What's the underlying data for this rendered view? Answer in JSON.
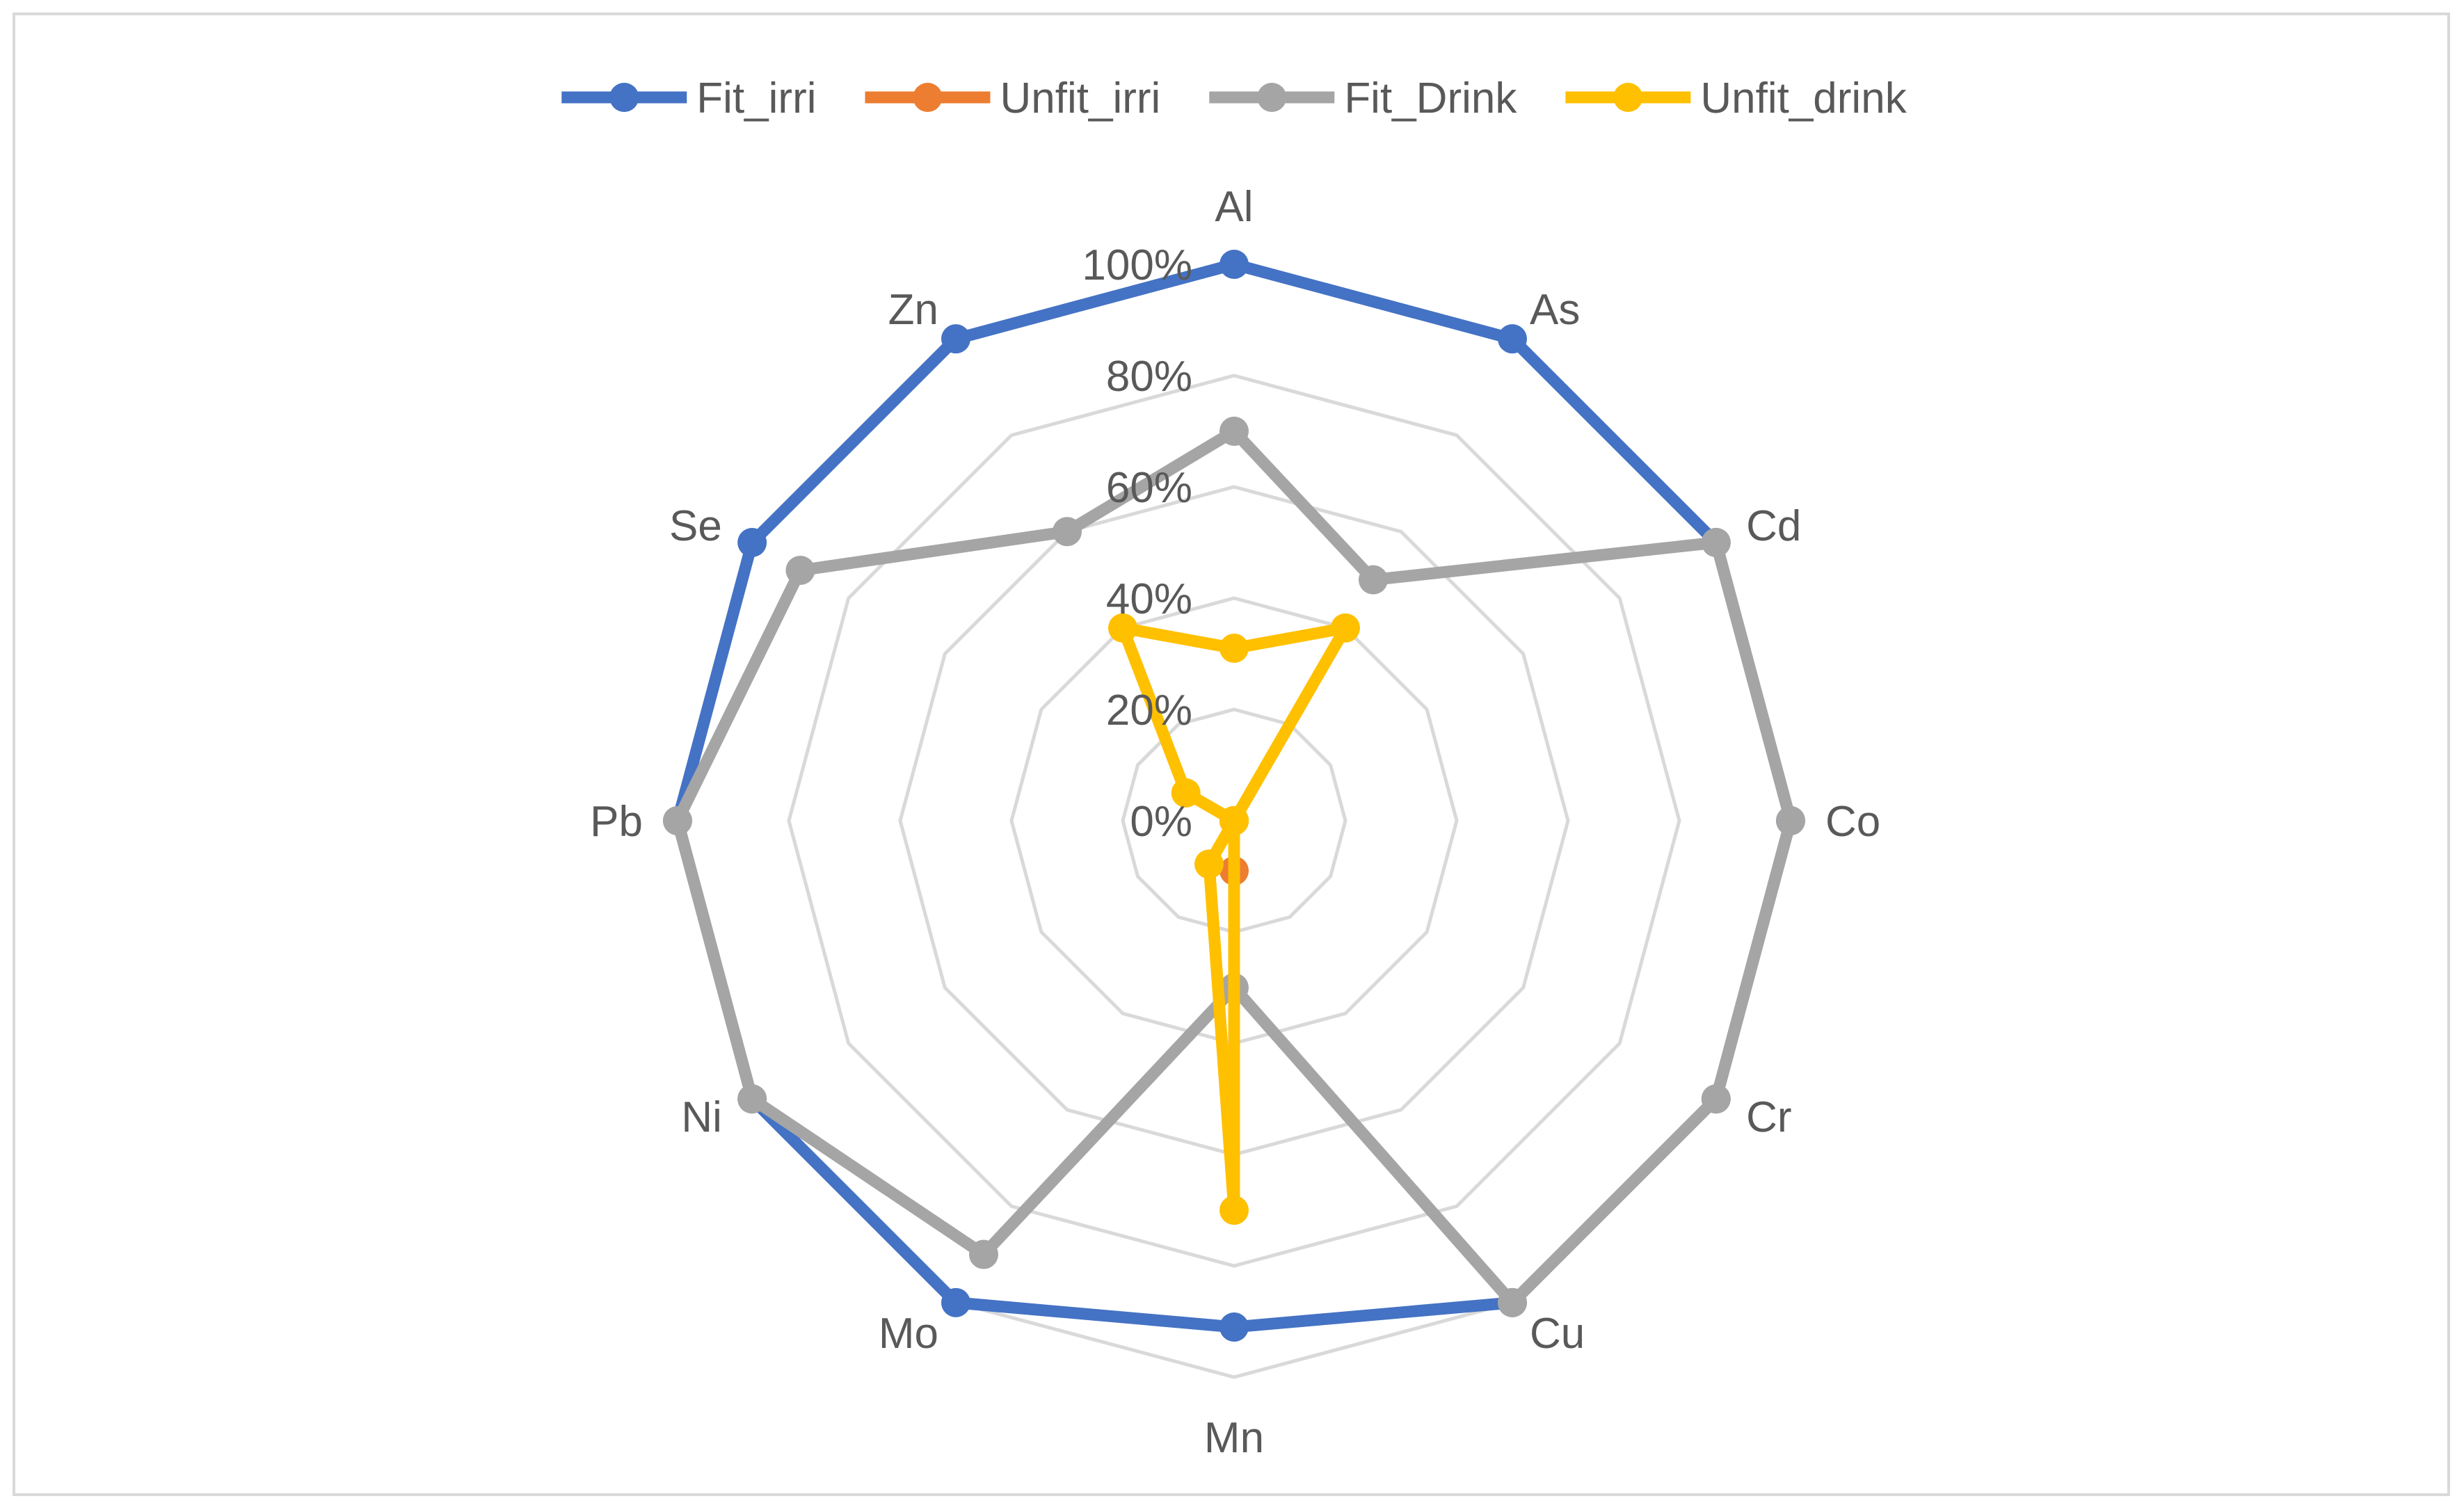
{
  "chart_data": {
    "type": "radar",
    "title": "",
    "categories": [
      "Al",
      "As",
      "Cd",
      "Co",
      "Cr",
      "Cu",
      "Mn",
      "Mo",
      "Ni",
      "Pb",
      "Se",
      "Zn"
    ],
    "r_ticks": [
      "0%",
      "20%",
      "40%",
      "60%",
      "80%",
      "100%"
    ],
    "r_range": [
      0,
      100
    ],
    "grid": true,
    "legend_position": "top",
    "series": [
      {
        "name": "Fit_irri",
        "color": "#4472c4",
        "values": [
          100,
          100,
          100,
          100,
          100,
          100,
          91,
          100,
          100,
          100,
          100,
          100
        ]
      },
      {
        "name": "Unfit_irri",
        "color": "#ed7d31",
        "values": [
          0,
          0,
          0,
          0,
          0,
          0,
          9,
          0,
          0,
          0,
          0,
          0
        ]
      },
      {
        "name": "Fit_Drink",
        "color": "#a5a5a5",
        "values": [
          70,
          50,
          100,
          100,
          100,
          100,
          30,
          90,
          100,
          100,
          90,
          60
        ]
      },
      {
        "name": "Unfit_drink",
        "color": "#ffc000",
        "values": [
          31,
          40,
          0,
          0,
          0,
          0,
          70,
          9,
          0,
          0,
          10,
          40
        ]
      }
    ]
  }
}
